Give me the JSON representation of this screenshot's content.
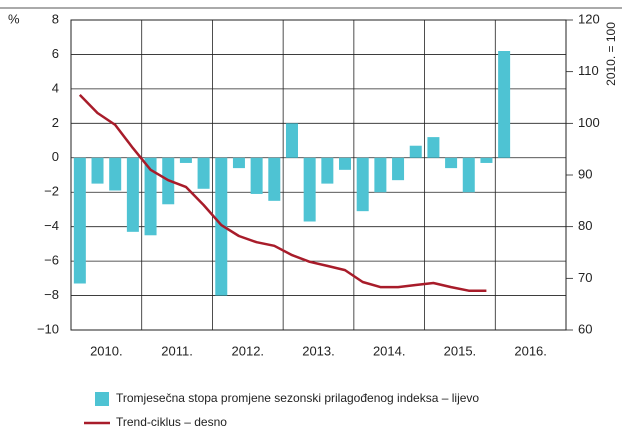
{
  "chart_data": {
    "type": "bar-line",
    "y_unit_label": "%",
    "y2_unit_label": "2010. = 100",
    "x_labels": [
      "2010.",
      "2011.",
      "2012.",
      "2013.",
      "2014.",
      "2015.",
      "2016."
    ],
    "categories": [
      null,
      null,
      null,
      null,
      null,
      null,
      null,
      null,
      null,
      null,
      null,
      null,
      null,
      null,
      null,
      null,
      null,
      null,
      null,
      null,
      null,
      null,
      null,
      null,
      null
    ],
    "series": [
      {
        "name": "Tromjesečna stopa promjene sezonski prilagođenog indeksa – lijevo",
        "color": "#4ec3d3",
        "type": "bar",
        "values": [
          -7.3,
          -1.5,
          -1.9,
          -4.3,
          -4.5,
          -2.7,
          -0.3,
          -1.8,
          -8.0,
          -0.6,
          -2.1,
          -2.5,
          2.0,
          -3.7,
          -1.5,
          -0.7,
          -3.1,
          -2.0,
          -1.3,
          0.7,
          1.2,
          -0.6,
          -2.0,
          -0.3,
          6.2
        ]
      },
      {
        "name": "Trend-ciklus – desno",
        "color": "#a81c2a",
        "type": "line",
        "axis": "y2",
        "values": [
          105.5,
          102,
          99.7,
          95.2,
          91,
          89,
          87.7,
          84.2,
          80.3,
          78.2,
          77,
          76.3,
          74.5,
          73.2,
          72.4,
          71.6,
          69.3,
          68.3,
          68.3,
          68.7,
          69.1,
          68.3,
          67.6,
          67.6,
          null
        ]
      }
    ],
    "ylim": [
      -10,
      8
    ],
    "yticks": [
      {
        "value": -10,
        "label": "−10"
      },
      {
        "value": -8,
        "label": "−8"
      },
      {
        "value": -6,
        "label": "−6"
      },
      {
        "value": -4,
        "label": "−4"
      },
      {
        "value": -2,
        "label": "−2"
      },
      0,
      2,
      4,
      6,
      8
    ],
    "y2lim": [
      60,
      120
    ],
    "y2ticks": [
      60,
      70,
      80,
      90,
      100,
      110,
      120
    ],
    "grid": true
  }
}
